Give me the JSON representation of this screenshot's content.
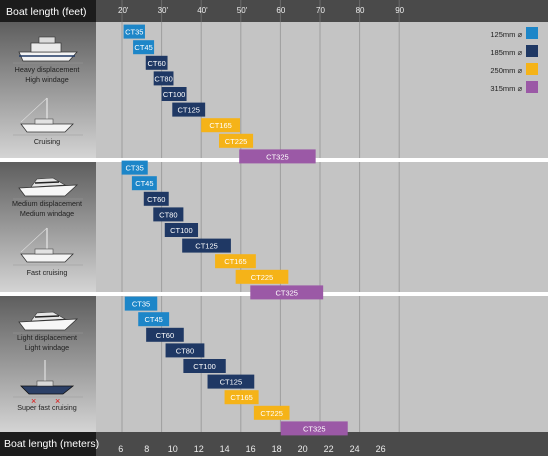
{
  "chart_data": {
    "type": "bar",
    "subtype": "range",
    "xlabel_top": "Boat length (feet)",
    "xlabel_bottom": "Boat length (meters)",
    "feet_ticks": [
      "20'",
      "30'",
      "40'",
      "50'",
      "60",
      "70",
      "80",
      "90"
    ],
    "feet_tick_values": [
      20,
      30,
      40,
      50,
      60,
      70,
      80,
      90
    ],
    "meter_ticks": [
      "6",
      "8",
      "10",
      "12",
      "14",
      "16",
      "18",
      "20",
      "22",
      "24",
      "26"
    ],
    "meter_tick_values": [
      6,
      8,
      10,
      12,
      14,
      16,
      18,
      20,
      22,
      24,
      26
    ],
    "xlim_feet": [
      18,
      90.5
    ],
    "grid": true,
    "legend_position": "top-right",
    "legend": [
      {
        "label": "125mm ⌀",
        "color": "#1d86c8"
      },
      {
        "label": "185mm ⌀",
        "color": "#1f3864"
      },
      {
        "label": "250mm ⌀",
        "color": "#f5b318"
      },
      {
        "label": "315mm ⌀",
        "color": "#9b59a6"
      }
    ],
    "sections": [
      {
        "labels": [
          {
            "lines": [
              "Heavy displacement",
              "High windage"
            ]
          },
          {
            "lines": [
              "Cruising"
            ]
          }
        ],
        "bars": [
          {
            "name": "CT35",
            "size": "125mm",
            "range_ft": [
              20.4,
              25.8
            ]
          },
          {
            "name": "CT45",
            "size": "125mm",
            "range_ft": [
              22.8,
              28.1
            ]
          },
          {
            "name": "CT60",
            "size": "185mm",
            "range_ft": [
              26.0,
              31.5
            ]
          },
          {
            "name": "CT80",
            "size": "185mm",
            "range_ft": [
              28.0,
              33.0
            ]
          },
          {
            "name": "CT100",
            "size": "185mm",
            "range_ft": [
              30.0,
              36.3
            ]
          },
          {
            "name": "CT125",
            "size": "185mm",
            "range_ft": [
              32.7,
              41.0
            ]
          },
          {
            "name": "CT165",
            "size": "250mm",
            "range_ft": [
              40.0,
              49.8
            ]
          },
          {
            "name": "CT225",
            "size": "250mm",
            "range_ft": [
              44.5,
              53.1
            ]
          },
          {
            "name": "CT325",
            "size": "315mm",
            "range_ft": [
              49.6,
              68.9
            ]
          }
        ]
      },
      {
        "labels": [
          {
            "lines": [
              "Medium displacement",
              "Medium windage"
            ]
          },
          {
            "lines": [
              "Fast cruising"
            ]
          }
        ],
        "bars": [
          {
            "name": "CT35",
            "size": "125mm",
            "range_ft": [
              19.9,
              26.5
            ]
          },
          {
            "name": "CT45",
            "size": "125mm",
            "range_ft": [
              22.5,
              28.8
            ]
          },
          {
            "name": "CT60",
            "size": "185mm",
            "range_ft": [
              25.5,
              31.8
            ]
          },
          {
            "name": "CT80",
            "size": "185mm",
            "range_ft": [
              27.9,
              35.5
            ]
          },
          {
            "name": "CT100",
            "size": "185mm",
            "range_ft": [
              30.8,
              39.2
            ]
          },
          {
            "name": "CT125",
            "size": "185mm",
            "range_ft": [
              35.2,
              47.5
            ]
          },
          {
            "name": "CT165",
            "size": "250mm",
            "range_ft": [
              43.5,
              53.8
            ]
          },
          {
            "name": "CT225",
            "size": "250mm",
            "range_ft": [
              48.7,
              62.0
            ]
          },
          {
            "name": "CT325",
            "size": "315mm",
            "range_ft": [
              52.4,
              70.8
            ]
          }
        ]
      },
      {
        "labels": [
          {
            "lines": [
              "Light displacement",
              "Light windage"
            ]
          },
          {
            "lines": [
              "Super fast cruising"
            ]
          }
        ],
        "bars": [
          {
            "name": "CT35",
            "size": "125mm",
            "range_ft": [
              20.7,
              28.9
            ]
          },
          {
            "name": "CT45",
            "size": "125mm",
            "range_ft": [
              24.1,
              31.9
            ]
          },
          {
            "name": "CT60",
            "size": "185mm",
            "range_ft": [
              26.1,
              35.6
            ]
          },
          {
            "name": "CT80",
            "size": "185mm",
            "range_ft": [
              31.0,
              40.8
            ]
          },
          {
            "name": "CT100",
            "size": "185mm",
            "range_ft": [
              35.5,
              46.2
            ]
          },
          {
            "name": "CT125",
            "size": "185mm",
            "range_ft": [
              41.6,
              53.4
            ]
          },
          {
            "name": "CT165",
            "size": "250mm",
            "range_ft": [
              45.9,
              54.5
            ]
          },
          {
            "name": "CT225",
            "size": "250mm",
            "range_ft": [
              53.3,
              62.3
            ]
          },
          {
            "name": "CT325",
            "size": "315mm",
            "range_ft": [
              60.1,
              77.0
            ]
          }
        ]
      }
    ]
  }
}
